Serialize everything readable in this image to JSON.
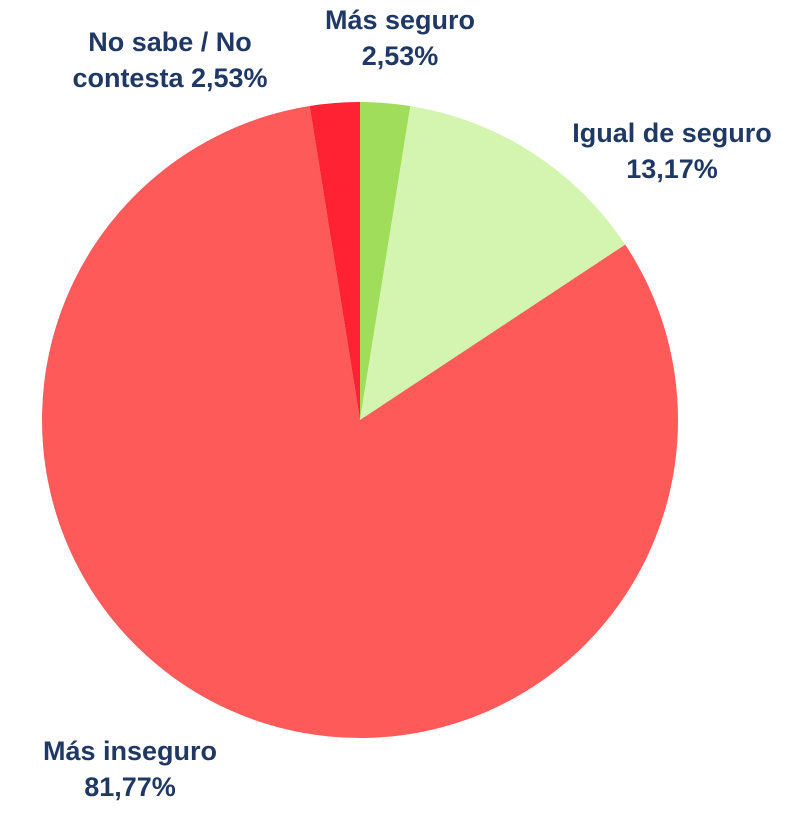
{
  "chart_data": {
    "type": "pie",
    "categories": [
      "Más seguro",
      "Igual de seguro",
      "Más inseguro",
      "No sabe / No contesta"
    ],
    "values": [
      2.53,
      13.17,
      81.77,
      2.53
    ],
    "value_labels": [
      "2,53%",
      "13,17%",
      "81,77%",
      "2,53%"
    ],
    "colors": [
      "#9fdd5a",
      "#d4f5b0",
      "#ff5a5a",
      "#ff2233"
    ]
  }
}
